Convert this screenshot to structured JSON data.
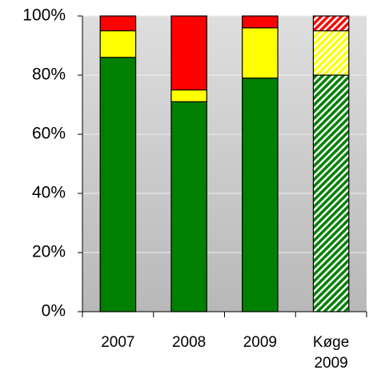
{
  "chart_data": {
    "type": "stacked_bar",
    "categories": [
      "2007",
      "2008",
      "2009",
      "Køge\n2009"
    ],
    "series": [
      {
        "color": "#008000",
        "values": [
          86,
          71,
          79,
          80
        ]
      },
      {
        "color": "#ffff00",
        "values": [
          9,
          4,
          17,
          15
        ]
      },
      {
        "color": "#ff0000",
        "values": [
          5,
          25,
          4,
          5
        ]
      }
    ],
    "hatched": [
      false,
      false,
      false,
      true
    ],
    "ylim": [
      0,
      100
    ],
    "yticks": [
      {
        "value": 0,
        "label": "0%"
      },
      {
        "value": 20,
        "label": "20%"
      },
      {
        "value": 40,
        "label": "40%"
      },
      {
        "value": 60,
        "label": "60%"
      },
      {
        "value": 80,
        "label": "80%"
      },
      {
        "value": 100,
        "label": "100%"
      }
    ],
    "grid": true
  }
}
